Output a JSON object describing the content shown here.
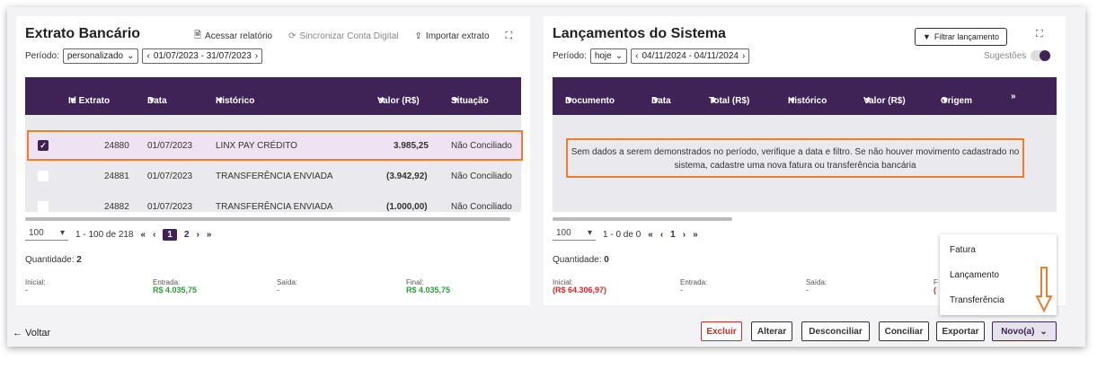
{
  "extrato": {
    "title": "Extrato Bancário",
    "links": {
      "relatorio": "Acessar relatório",
      "sincronizar": "Sincronizar Conta Digital",
      "importar": "Importar extrato"
    },
    "periodo_label": "Período:",
    "periodo_mode": "personalizado",
    "periodo_range": "01/07/2023 - 31/07/2023",
    "columns": [
      "Id Extrato",
      "Data",
      "Histórico",
      "Valor (R$)",
      "Situação"
    ],
    "rows": [
      {
        "id": "24880",
        "data": "01/07/2023",
        "historico": "LINX PAY CRÉDITO",
        "valor": "3.985,25",
        "situacao": "Não Conciliado",
        "checked": true
      },
      {
        "id": "24881",
        "data": "01/07/2023",
        "historico": "TRANSFERÊNCIA ENVIADA",
        "valor": "(3.942,92)",
        "situacao": "Não Conciliado",
        "checked": false
      },
      {
        "id": "24882",
        "data": "01/07/2023",
        "historico": "TRANSFERÊNCIA ENVIADA",
        "valor": "(1.000,00)",
        "situacao": "Não Conciliado",
        "checked": false
      }
    ],
    "page_size": "100",
    "page_range": "1 - 100 de 218",
    "pages": [
      "1",
      "2"
    ],
    "quantidade_label": "Quantidade:",
    "quantidade": "2",
    "totals": {
      "inicial_label": "Inicial:",
      "inicial": "-",
      "entrada_label": "Entrada:",
      "entrada": "R$ 4.035,75",
      "saida_label": "Saída:",
      "saida": "-",
      "final_label": "Final:",
      "final": "R$ 4.035,75"
    }
  },
  "lancamentos": {
    "title": "Lançamentos do Sistema",
    "filter_button": "Filtrar lançamento",
    "periodo_label": "Período:",
    "periodo_mode": "hoje",
    "periodo_range": "04/11/2024 - 04/11/2024",
    "sugestoes": "Sugestões",
    "columns": [
      "Documento",
      "Data",
      "Total (R$)",
      "Histórico",
      "Valor (R$)",
      "Origem"
    ],
    "more": "»",
    "empty_message": "Sem dados a serem demonstrados no período, verifique a data e filtro. Se não houver movimento cadastrado no sistema, cadastre uma nova fatura ou transferência bancária",
    "page_size": "100",
    "page_range": "1 - 0 de 0",
    "page": "1",
    "quantidade_label": "Quantidade:",
    "quantidade": "0",
    "totals": {
      "inicial_label": "Inicial:",
      "inicial": "(R$ 64.306,97)",
      "entrada_label": "Entrada:",
      "entrada": "-",
      "saida_label": "Saída:",
      "saida": "-",
      "final_label": "F",
      "final": "("
    }
  },
  "footer": {
    "voltar": "← Voltar",
    "buttons": {
      "excluir": "Excluir",
      "alterar": "Alterar",
      "desconciliar": "Desconciliar",
      "conciliar": "Conciliar",
      "exportar": "Exportar",
      "novo": "Novo(a)"
    }
  },
  "novo_menu": [
    "Fatura",
    "Lançamento",
    "Transferência"
  ],
  "colors": {
    "header": "#3f2256",
    "highlight": "#ef7d2a",
    "positive": "#2d9e3a",
    "negative": "#d62929"
  }
}
